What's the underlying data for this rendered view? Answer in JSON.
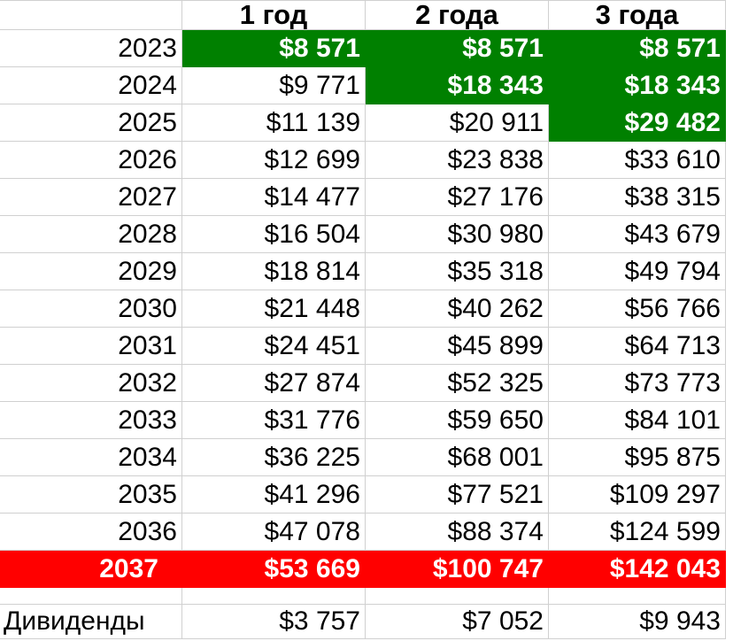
{
  "chart_data": {
    "type": "table",
    "corner_header": "",
    "column_headers": [
      "1 год",
      "2 года",
      "3 года"
    ],
    "rows": [
      {
        "year": "2023",
        "values": [
          "$8 571",
          "$8 571",
          "$8 571"
        ],
        "green": [
          true,
          true,
          true
        ]
      },
      {
        "year": "2024",
        "values": [
          "$9 771",
          "$18 343",
          "$18 343"
        ],
        "green": [
          false,
          true,
          true
        ]
      },
      {
        "year": "2025",
        "values": [
          "$11 139",
          "$20 911",
          "$29 482"
        ],
        "green": [
          false,
          false,
          true
        ]
      },
      {
        "year": "2026",
        "values": [
          "$12 699",
          "$23 838",
          "$33 610"
        ],
        "green": [
          false,
          false,
          false
        ]
      },
      {
        "year": "2027",
        "values": [
          "$14 477",
          "$27 176",
          "$38 315"
        ],
        "green": [
          false,
          false,
          false
        ]
      },
      {
        "year": "2028",
        "values": [
          "$16 504",
          "$30 980",
          "$43 679"
        ],
        "green": [
          false,
          false,
          false
        ]
      },
      {
        "year": "2029",
        "values": [
          "$18 814",
          "$35 318",
          "$49 794"
        ],
        "green": [
          false,
          false,
          false
        ]
      },
      {
        "year": "2030",
        "values": [
          "$21 448",
          "$40 262",
          "$56 766"
        ],
        "green": [
          false,
          false,
          false
        ]
      },
      {
        "year": "2031",
        "values": [
          "$24 451",
          "$45 899",
          "$64 713"
        ],
        "green": [
          false,
          false,
          false
        ]
      },
      {
        "year": "2032",
        "values": [
          "$27 874",
          "$52 325",
          "$73 773"
        ],
        "green": [
          false,
          false,
          false
        ]
      },
      {
        "year": "2033",
        "values": [
          "$31 776",
          "$59 650",
          "$84 101"
        ],
        "green": [
          false,
          false,
          false
        ]
      },
      {
        "year": "2034",
        "values": [
          "$36 225",
          "$68 001",
          "$95 875"
        ],
        "green": [
          false,
          false,
          false
        ]
      },
      {
        "year": "2035",
        "values": [
          "$41 296",
          "$77 521",
          "$109 297"
        ],
        "green": [
          false,
          false,
          false
        ]
      },
      {
        "year": "2036",
        "values": [
          "$47 078",
          "$88 374",
          "$124 599"
        ],
        "green": [
          false,
          false,
          false
        ]
      },
      {
        "year": "2037",
        "values": [
          "$53 669",
          "$100 747",
          "$142 043"
        ],
        "green": [
          false,
          false,
          false
        ],
        "fill": "red"
      }
    ],
    "footer_row": {
      "label": "Дивиденды",
      "values": [
        "$3 757",
        "$7 052",
        "$9 943"
      ]
    }
  },
  "colors": {
    "green_fill": "#008000",
    "red_fill": "#FF0000",
    "gridline": "#D0D0D0",
    "text": "#000000",
    "filled_cell_text": "#FFFFFF",
    "background": "#FFFFFF"
  }
}
